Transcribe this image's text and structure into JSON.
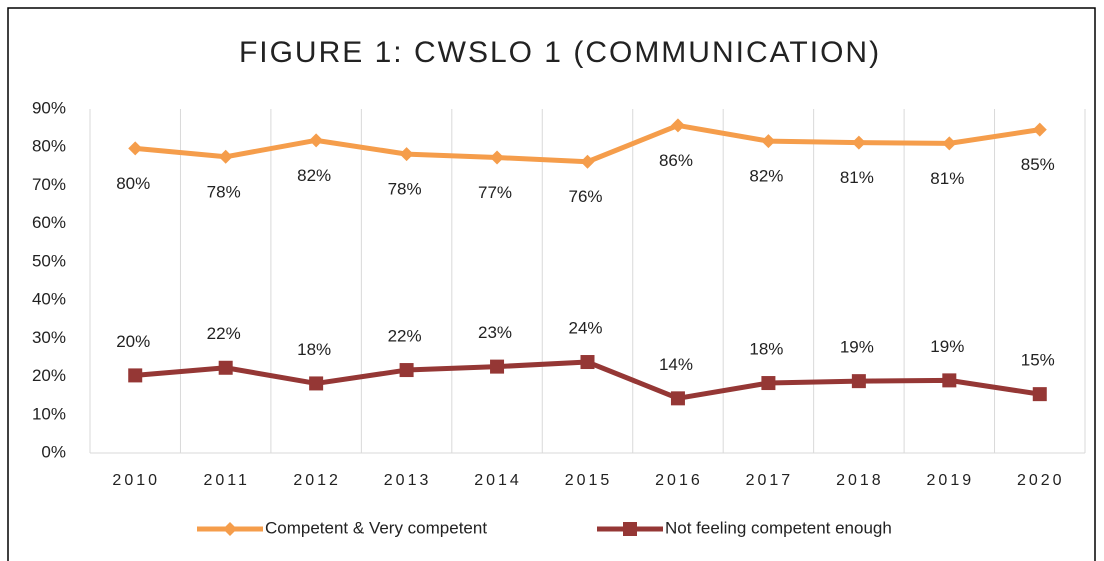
{
  "chart_data": {
    "type": "line",
    "title": "FIGURE 1: CWSLO 1 (COMMUNICATION)",
    "categories": [
      "2010",
      "2011",
      "2012",
      "2013",
      "2014",
      "2015",
      "2016",
      "2017",
      "2018",
      "2019",
      "2020"
    ],
    "series": [
      {
        "name": "Competent & Very competent",
        "color": "#F59D4B",
        "marker": "diamond",
        "values": [
          79.7,
          77.5,
          81.8,
          78.2,
          77.3,
          76.2,
          85.7,
          81.6,
          81.2,
          81.0,
          84.6
        ],
        "value_labels": [
          "80%",
          "78%",
          "82%",
          "78%",
          "77%",
          "76%",
          "86%",
          "82%",
          "81%",
          "81%",
          "85%"
        ]
      },
      {
        "name": "Not feeling competent enough",
        "color": "#953735",
        "marker": "square",
        "values": [
          20.3,
          22.3,
          18.2,
          21.7,
          22.6,
          23.8,
          14.3,
          18.3,
          18.8,
          19.0,
          15.4
        ],
        "value_labels": [
          "20%",
          "22%",
          "18%",
          "22%",
          "23%",
          "24%",
          "14%",
          "18%",
          "19%",
          "19%",
          "15%"
        ]
      }
    ],
    "ylim": [
      0,
      90
    ],
    "yticks": [
      {
        "value": 0,
        "label": "0%"
      },
      {
        "value": 10,
        "label": "10%"
      },
      {
        "value": 20,
        "label": "20%"
      },
      {
        "value": 30,
        "label": "30%"
      },
      {
        "value": 40,
        "label": "40%"
      },
      {
        "value": 50,
        "label": "50%"
      },
      {
        "value": 60,
        "label": "60%"
      },
      {
        "value": 70,
        "label": "70%"
      },
      {
        "value": 80,
        "label": "80%"
      },
      {
        "value": 90,
        "label": "90%"
      }
    ],
    "grid": true,
    "legend": "bottom"
  }
}
